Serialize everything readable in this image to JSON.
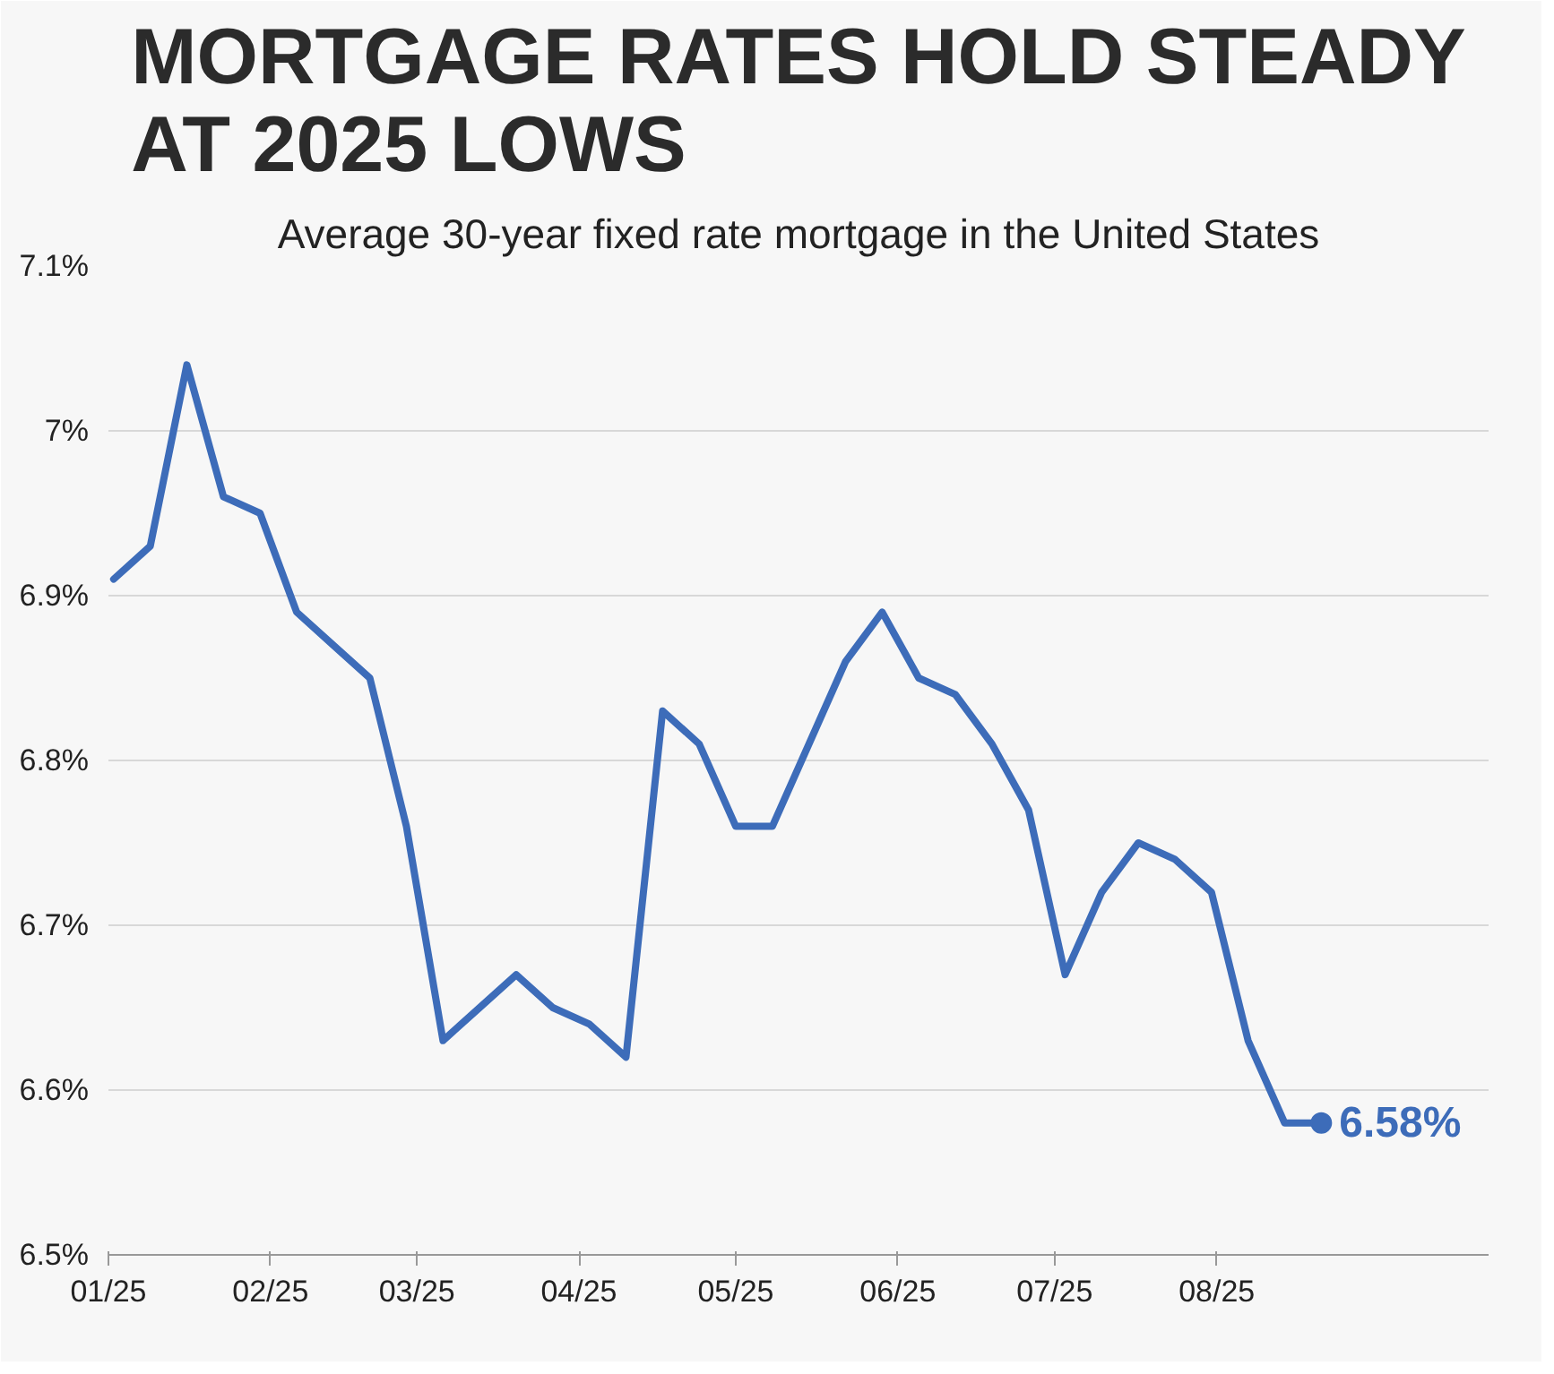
{
  "chart_data": {
    "type": "line",
    "title": "MORTGAGE RATES HOLD STEADY AT 2025 LOWS",
    "subtitle": "Average 30-year fixed rate mortgage in the United States",
    "x": [
      "2025-01-02",
      "2025-01-09",
      "2025-01-16",
      "2025-01-23",
      "2025-01-30",
      "2025-02-06",
      "2025-02-13",
      "2025-02-20",
      "2025-02-27",
      "2025-03-06",
      "2025-03-13",
      "2025-03-20",
      "2025-03-27",
      "2025-04-03",
      "2025-04-10",
      "2025-04-17",
      "2025-04-24",
      "2025-05-01",
      "2025-05-08",
      "2025-05-15",
      "2025-05-22",
      "2025-05-29",
      "2025-06-05",
      "2025-06-12",
      "2025-06-19",
      "2025-06-26",
      "2025-07-03",
      "2025-07-10",
      "2025-07-17",
      "2025-07-24",
      "2025-07-31",
      "2025-08-07",
      "2025-08-14",
      "2025-08-21"
    ],
    "series": [
      {
        "color": "#3d6cb9",
        "values": [
          6.91,
          6.93,
          7.04,
          6.96,
          6.95,
          6.89,
          6.87,
          6.85,
          6.76,
          6.63,
          6.65,
          6.67,
          6.65,
          6.64,
          6.62,
          6.83,
          6.81,
          6.76,
          6.76,
          6.81,
          6.86,
          6.89,
          6.85,
          6.84,
          6.81,
          6.77,
          6.67,
          6.72,
          6.75,
          6.74,
          6.72,
          6.63,
          6.58,
          6.58
        ]
      }
    ],
    "xlim": [
      "2025-01-01",
      "2025-09-22"
    ],
    "xticks": [
      {
        "value": "2025-01-01",
        "label": "01/25"
      },
      {
        "value": "2025-02-01",
        "label": "02/25"
      },
      {
        "value": "2025-03-01",
        "label": "03/25"
      },
      {
        "value": "2025-04-01",
        "label": "04/25"
      },
      {
        "value": "2025-05-01",
        "label": "05/25"
      },
      {
        "value": "2025-06-01",
        "label": "06/25"
      },
      {
        "value": "2025-07-01",
        "label": "07/25"
      },
      {
        "value": "2025-08-01",
        "label": "08/25"
      }
    ],
    "ylim": [
      6.5,
      7.1
    ],
    "yticks": [
      {
        "value": 6.5,
        "label": "6.5%"
      },
      {
        "value": 6.6,
        "label": "6.6%"
      },
      {
        "value": 6.7,
        "label": "6.7%"
      },
      {
        "value": 6.8,
        "label": "6.8%"
      },
      {
        "value": 6.9,
        "label": "6.9%"
      },
      {
        "value": 7.0,
        "label": "7%"
      },
      {
        "value": 7.1,
        "label": "7.1%"
      }
    ],
    "grid": "y",
    "marker": "none",
    "line_style": "solid",
    "annotations": [
      {
        "text": "6.58%",
        "x": "2025-08-21",
        "y": 6.58
      }
    ]
  }
}
